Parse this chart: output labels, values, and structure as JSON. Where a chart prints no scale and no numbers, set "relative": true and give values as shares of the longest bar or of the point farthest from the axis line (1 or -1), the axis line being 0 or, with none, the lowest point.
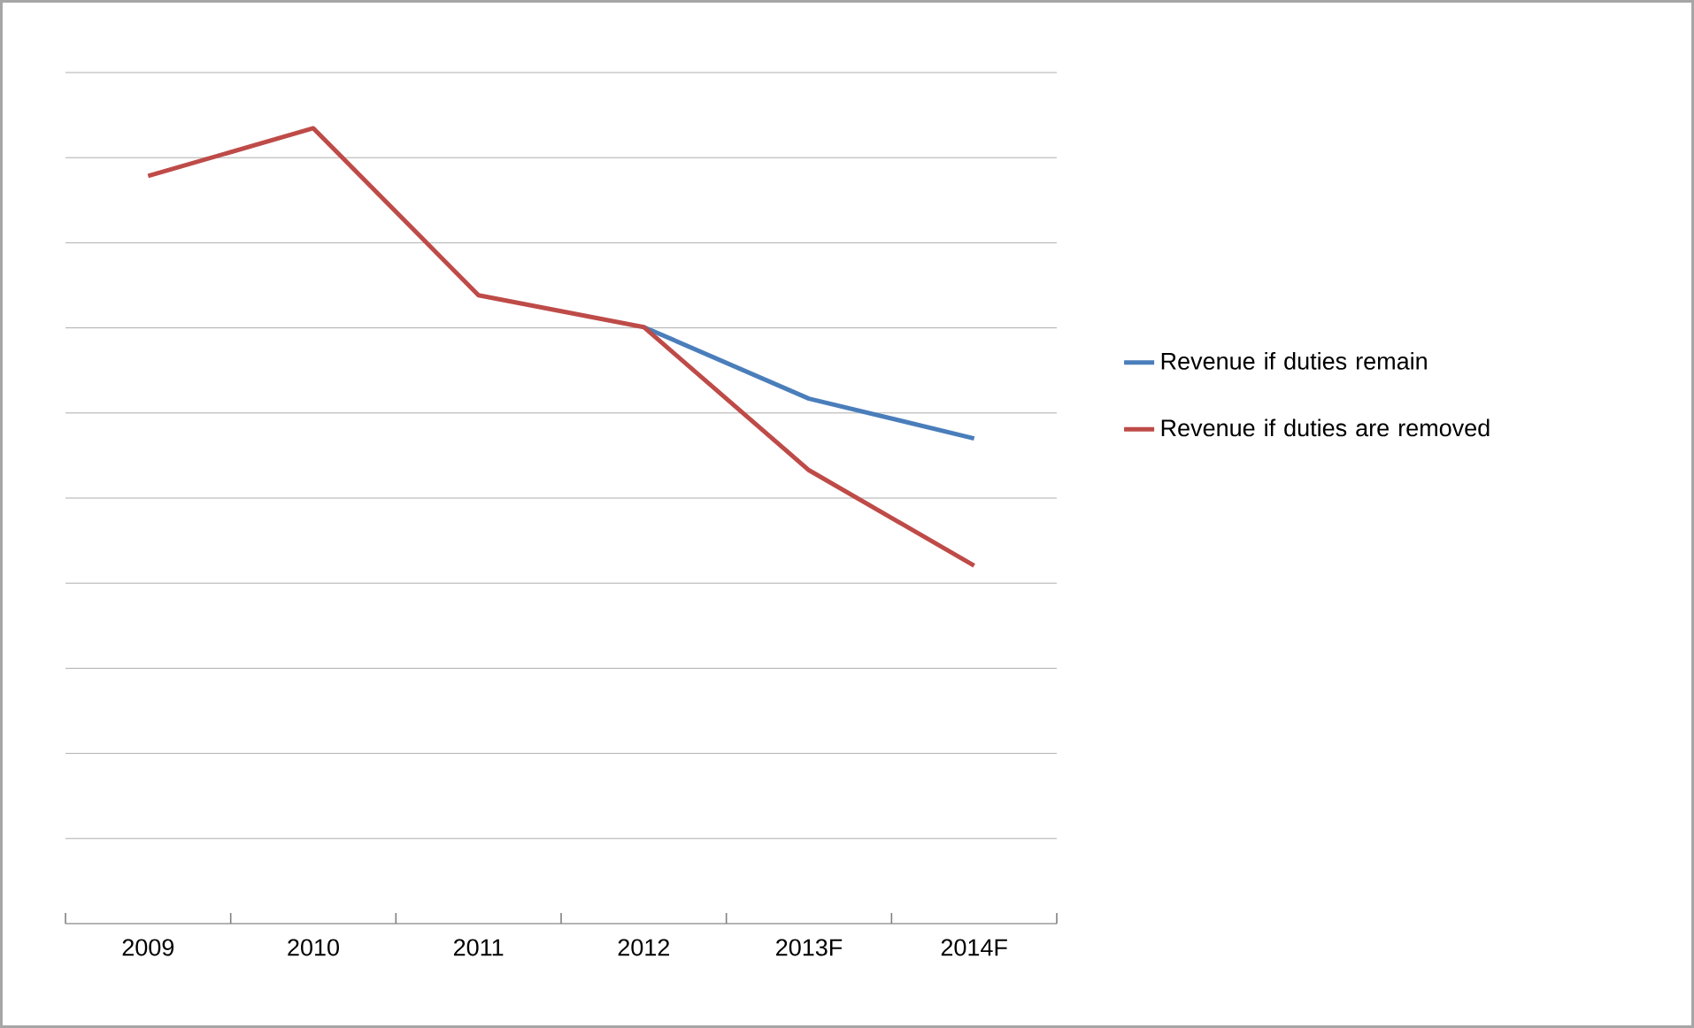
{
  "chart_data": {
    "type": "line",
    "relative": true,
    "grid": "y",
    "legend": "right",
    "marker": "none",
    "line_style": "solid",
    "categories": [
      "2009",
      "2010",
      "2011",
      "2012",
      "2013F",
      "2014F"
    ],
    "series": [
      {
        "name": "Revenue if duties remain",
        "color": "#4a7ebb",
        "values": [
          null,
          null,
          null,
          0.75,
          0.66,
          0.61
        ]
      },
      {
        "name": "Revenue if duties are removed",
        "color": "#be4b48",
        "values": [
          0.94,
          1.0,
          0.79,
          0.75,
          0.57,
          0.45
        ]
      }
    ]
  }
}
